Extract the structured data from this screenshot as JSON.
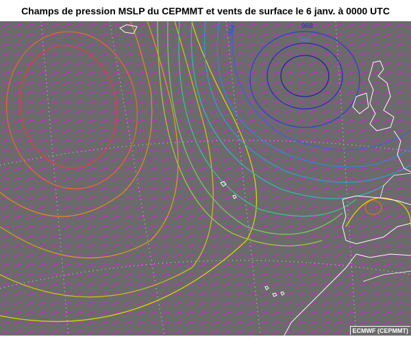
{
  "title": "Champs de pression MSLP du CEPMMT et vents de surface le 6 janv. à 0000 UTC",
  "credit": "ECMWF (CEPMMT)",
  "isobar_labels": [
    "968",
    "960",
    "984"
  ],
  "colors": {
    "background": "#6b6b6b",
    "wind_barbs": "#ff00ff",
    "coastline": "#ffffff",
    "graticule": "#ffffff",
    "high_pressure": "#e0403a",
    "mid_pressure": "#e8d300",
    "low_pressure": "#2a2ac8",
    "label_low": "#5a7ae0"
  }
}
